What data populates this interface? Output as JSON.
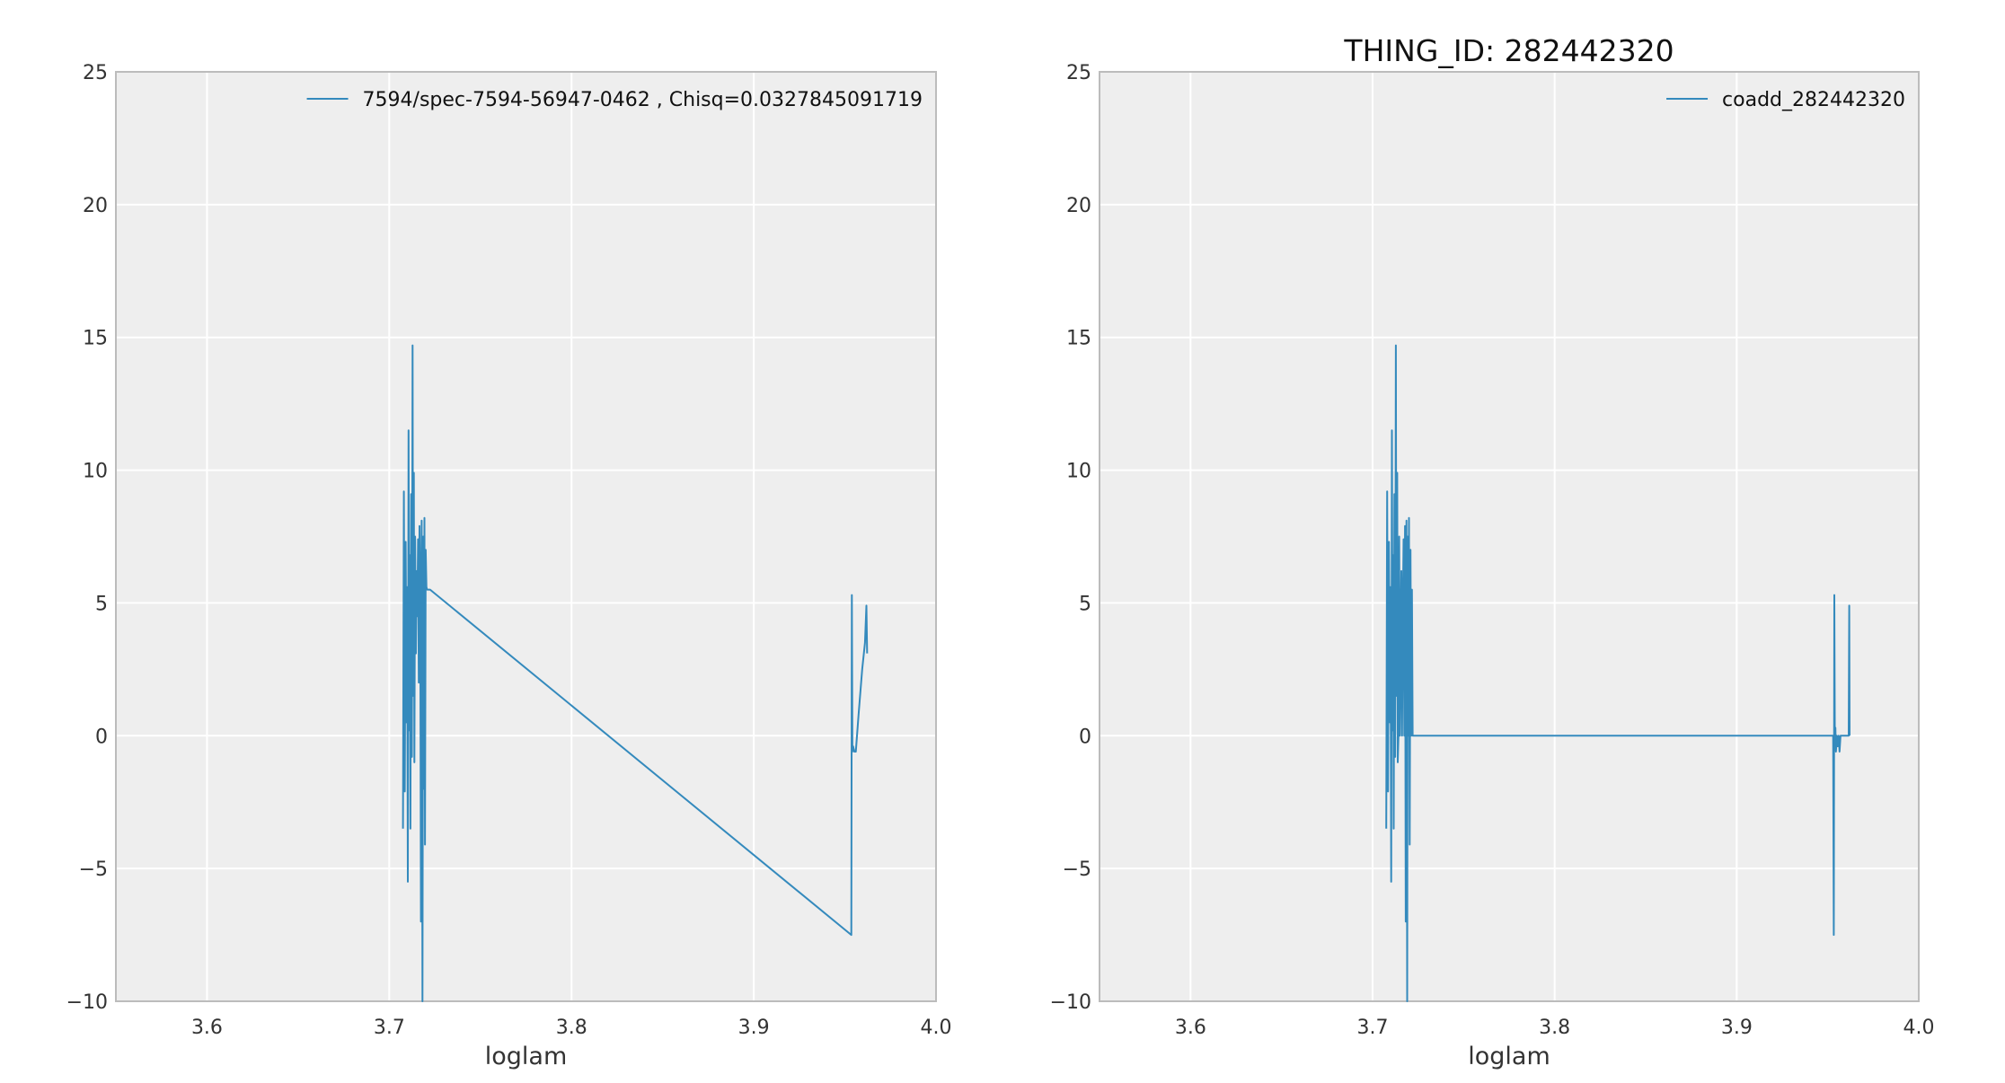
{
  "chart_data": [
    {
      "type": "line",
      "title": "",
      "xlabel": "loglam",
      "ylabel": "",
      "xlim": [
        3.55,
        4.0
      ],
      "ylim": [
        -10,
        25
      ],
      "xticks": [
        3.6,
        3.7,
        3.8,
        3.9,
        4.0
      ],
      "xtick_labels": [
        "3.6",
        "3.7",
        "3.8",
        "3.9",
        "4.0"
      ],
      "yticks": [
        -10,
        -5,
        0,
        5,
        10,
        15,
        20,
        25
      ],
      "ytick_labels": [
        "−10",
        "−5",
        "0",
        "5",
        "10",
        "15",
        "20",
        "25"
      ],
      "grid": true,
      "legend_position": "top-right",
      "series": [
        {
          "name": "7594/spec-7594-56947-0462  , Chisq=0.0327845091719",
          "color": "#348abd",
          "x": [
            3.7075,
            3.708,
            3.7085,
            3.709,
            3.7095,
            3.7098,
            3.7102,
            3.7106,
            3.711,
            3.7113,
            3.7116,
            3.712,
            3.7124,
            3.7128,
            3.7131,
            3.7135,
            3.7138,
            3.7142,
            3.7146,
            3.715,
            3.7154,
            3.7158,
            3.7162,
            3.7166,
            3.717,
            3.7174,
            3.7178,
            3.7182,
            3.7186,
            3.719,
            3.7193,
            3.7196,
            3.72,
            3.7204,
            3.7208,
            3.7212,
            3.7216,
            3.722,
            3.7224,
            3.9535,
            3.9538,
            3.9541,
            3.9545,
            3.9552,
            3.956,
            3.9575,
            3.9595,
            3.961,
            3.9618,
            3.9622
          ],
          "y": [
            -3.5,
            9.2,
            -2.1,
            7.3,
            0.5,
            5.6,
            -5.5,
            11.5,
            0.2,
            6.8,
            -3.5,
            9.1,
            -0.8,
            14.7,
            1.5,
            9.9,
            -1.0,
            7.5,
            3.1,
            6.2,
            4.5,
            7.4,
            2.0,
            7.9,
            5.5,
            -7.0,
            8.1,
            -10.0,
            7.5,
            -2.0,
            8.2,
            -4.1,
            7.0,
            5.6,
            5.5,
            5.5,
            5.5,
            5.5,
            5.5,
            -7.5,
            5.3,
            -0.6,
            -0.4,
            -0.6,
            -0.6,
            0.8,
            2.5,
            3.5,
            4.9,
            3.1
          ]
        }
      ]
    },
    {
      "type": "line",
      "title": "THING_ID: 282442320",
      "xlabel": "loglam",
      "ylabel": "",
      "xlim": [
        3.55,
        4.0
      ],
      "ylim": [
        -10,
        25
      ],
      "xticks": [
        3.6,
        3.7,
        3.8,
        3.9,
        4.0
      ],
      "xtick_labels": [
        "3.6",
        "3.7",
        "3.8",
        "3.9",
        "4.0"
      ],
      "yticks": [
        -10,
        -5,
        0,
        5,
        10,
        15,
        20,
        25
      ],
      "ytick_labels": [
        "−10",
        "−5",
        "0",
        "5",
        "10",
        "15",
        "20",
        "25"
      ],
      "grid": true,
      "legend_position": "top-right",
      "series": [
        {
          "name": "coadd_282442320",
          "color": "#348abd",
          "x": [
            3.7075,
            3.708,
            3.7085,
            3.709,
            3.7095,
            3.7098,
            3.7102,
            3.7106,
            3.711,
            3.7113,
            3.7116,
            3.712,
            3.7124,
            3.7128,
            3.7131,
            3.7135,
            3.7138,
            3.7142,
            3.7146,
            3.715,
            3.7154,
            3.7158,
            3.7162,
            3.7166,
            3.717,
            3.7174,
            3.7178,
            3.7182,
            3.7186,
            3.719,
            3.7193,
            3.7196,
            3.72,
            3.7204,
            3.7208,
            3.7212,
            3.7216,
            3.722,
            3.7224,
            3.7228,
            3.7232,
            3.7236,
            3.724,
            3.9525,
            3.953,
            3.9533,
            3.9536,
            3.9539,
            3.9542,
            3.9545,
            3.955,
            3.9555,
            3.956,
            3.9565,
            3.957,
            3.9578,
            3.9586,
            3.9594,
            3.96,
            3.9608,
            3.9612,
            3.9615,
            3.9618,
            3.962
          ],
          "y": [
            -3.5,
            9.2,
            -2.1,
            7.3,
            0.5,
            5.6,
            -5.5,
            11.5,
            0.2,
            6.8,
            -3.5,
            9.1,
            -0.8,
            14.7,
            1.5,
            9.9,
            -1.0,
            0.0,
            7.5,
            0.0,
            3.1,
            6.2,
            0.0,
            4.5,
            7.4,
            0.0,
            7.9,
            -7.0,
            8.1,
            -10.0,
            7.5,
            0.0,
            8.2,
            -4.1,
            7.0,
            0.0,
            5.5,
            0.0,
            0.0,
            0.0,
            0.0,
            0.0,
            0.0,
            0.0,
            0.0,
            -7.5,
            5.3,
            -0.3,
            0.3,
            -0.6,
            0.0,
            -0.4,
            0.0,
            -0.6,
            0.0,
            0.0,
            0.0,
            0.0,
            0.0,
            0.0,
            0.0,
            0.0,
            4.9,
            0.0
          ]
        }
      ]
    }
  ]
}
